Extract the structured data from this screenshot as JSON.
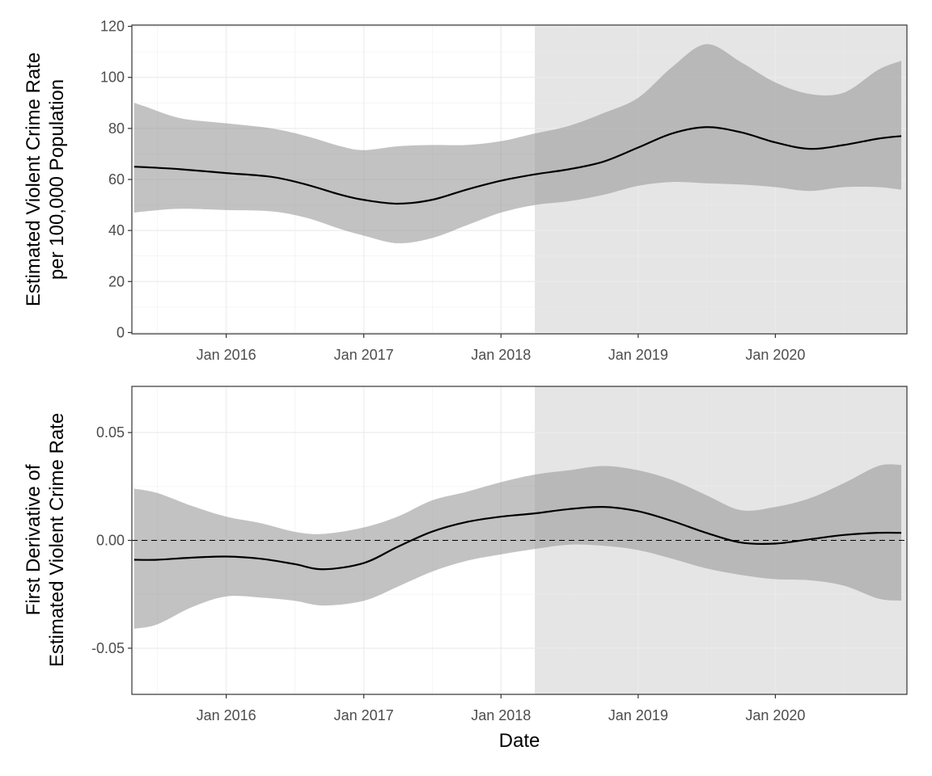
{
  "chart_data": [
    {
      "type": "line",
      "panel": "top",
      "ylabel_line1": "Estimated Violent Crime Rate",
      "ylabel_line2": "per 100,000 Population",
      "xlabel": "",
      "x_type": "date",
      "xlim": [
        "2015-04-25",
        "2020-12-16"
      ],
      "ylim": [
        -0.5,
        120.5
      ],
      "x_ticks": [
        {
          "date": "2016-01-01",
          "label": "Jan 2016"
        },
        {
          "date": "2017-01-01",
          "label": "Jan 2017"
        },
        {
          "date": "2018-01-01",
          "label": "Jan 2018"
        },
        {
          "date": "2019-01-01",
          "label": "Jan 2019"
        },
        {
          "date": "2020-01-01",
          "label": "Jan 2020"
        }
      ],
      "y_ticks": [
        0,
        20,
        40,
        60,
        80,
        100,
        120
      ],
      "grid": true,
      "shaded_region": {
        "start": "2018-04-01",
        "end": "2020-12-16",
        "color": "#e5e5e5"
      },
      "ribbon_color": "#999999",
      "line_color": "#000000",
      "series": [
        {
          "points": [
            {
              "x": "2015-05-01",
              "y": 65,
              "lo": 47,
              "hi": 90
            },
            {
              "x": "2015-06-01",
              "y": 64.8,
              "lo": 47.5,
              "hi": 88.5
            },
            {
              "x": "2015-09-01",
              "y": 64,
              "lo": 48.5,
              "hi": 84
            },
            {
              "x": "2016-01-01",
              "y": 62.5,
              "lo": 48,
              "hi": 82
            },
            {
              "x": "2016-05-01",
              "y": 61,
              "lo": 47.5,
              "hi": 80
            },
            {
              "x": "2016-08-01",
              "y": 58,
              "lo": 45,
              "hi": 77
            },
            {
              "x": "2016-11-01",
              "y": 54,
              "lo": 40.5,
              "hi": 73
            },
            {
              "x": "2017-01-01",
              "y": 52,
              "lo": 38,
              "hi": 71.5
            },
            {
              "x": "2017-04-01",
              "y": 50.5,
              "lo": 35,
              "hi": 73
            },
            {
              "x": "2017-07-01",
              "y": 52,
              "lo": 37,
              "hi": 73.5
            },
            {
              "x": "2017-10-01",
              "y": 56,
              "lo": 42,
              "hi": 73.5
            },
            {
              "x": "2018-01-01",
              "y": 59.5,
              "lo": 47,
              "hi": 75
            },
            {
              "x": "2018-04-01",
              "y": 62,
              "lo": 50,
              "hi": 78
            },
            {
              "x": "2018-07-01",
              "y": 64,
              "lo": 51.5,
              "hi": 81
            },
            {
              "x": "2018-10-01",
              "y": 67,
              "lo": 54,
              "hi": 86
            },
            {
              "x": "2019-01-01",
              "y": 72.5,
              "lo": 57.5,
              "hi": 92
            },
            {
              "x": "2019-04-01",
              "y": 78,
              "lo": 59,
              "hi": 104
            },
            {
              "x": "2019-07-01",
              "y": 80.5,
              "lo": 58.5,
              "hi": 113
            },
            {
              "x": "2019-10-01",
              "y": 78.5,
              "lo": 58,
              "hi": 106
            },
            {
              "x": "2020-01-01",
              "y": 74.5,
              "lo": 57,
              "hi": 98
            },
            {
              "x": "2020-04-01",
              "y": 72,
              "lo": 55.5,
              "hi": 93.5
            },
            {
              "x": "2020-07-01",
              "y": 73.5,
              "lo": 57,
              "hi": 94
            },
            {
              "x": "2020-10-01",
              "y": 76,
              "lo": 57,
              "hi": 103
            },
            {
              "x": "2020-12-01",
              "y": 77,
              "lo": 56,
              "hi": 106.5
            }
          ]
        }
      ]
    },
    {
      "type": "line",
      "panel": "bottom",
      "ylabel_line1": "First Derivative of",
      "ylabel_line2": "Estimated Violent Crime Rate",
      "xlabel": "Date",
      "x_type": "date",
      "xlim": [
        "2015-04-25",
        "2020-12-16"
      ],
      "ylim": [
        -0.0714,
        0.0714
      ],
      "x_ticks": [
        {
          "date": "2016-01-01",
          "label": "Jan 2016"
        },
        {
          "date": "2017-01-01",
          "label": "Jan 2017"
        },
        {
          "date": "2018-01-01",
          "label": "Jan 2018"
        },
        {
          "date": "2019-01-01",
          "label": "Jan 2019"
        },
        {
          "date": "2020-01-01",
          "label": "Jan 2020"
        }
      ],
      "y_ticks": [
        {
          "value": -0.05,
          "label": "-0.05"
        },
        {
          "value": 0.0,
          "label": "0.00"
        },
        {
          "value": 0.05,
          "label": "0.05"
        }
      ],
      "grid": true,
      "reference_line": {
        "y": 0,
        "style": "dashed"
      },
      "shaded_region": {
        "start": "2018-04-01",
        "end": "2020-12-16",
        "color": "#e5e5e5"
      },
      "ribbon_color": "#999999",
      "line_color": "#000000",
      "series": [
        {
          "points": [
            {
              "x": "2015-05-01",
              "y": -0.009,
              "lo": -0.041,
              "hi": 0.024
            },
            {
              "x": "2015-07-01",
              "y": -0.009,
              "lo": -0.039,
              "hi": 0.022
            },
            {
              "x": "2015-10-01",
              "y": -0.008,
              "lo": -0.031,
              "hi": 0.016
            },
            {
              "x": "2016-01-01",
              "y": -0.0075,
              "lo": -0.026,
              "hi": 0.011
            },
            {
              "x": "2016-04-01",
              "y": -0.0085,
              "lo": -0.0265,
              "hi": 0.008
            },
            {
              "x": "2016-07-01",
              "y": -0.011,
              "lo": -0.028,
              "hi": 0.004
            },
            {
              "x": "2016-09-15",
              "y": -0.0134,
              "lo": -0.0302,
              "hi": 0.003
            },
            {
              "x": "2017-01-01",
              "y": -0.0105,
              "lo": -0.028,
              "hi": 0.006
            },
            {
              "x": "2017-04-01",
              "y": -0.003,
              "lo": -0.0215,
              "hi": 0.011
            },
            {
              "x": "2017-07-01",
              "y": 0.004,
              "lo": -0.0145,
              "hi": 0.0185
            },
            {
              "x": "2017-10-01",
              "y": 0.0085,
              "lo": -0.0095,
              "hi": 0.0225
            },
            {
              "x": "2018-01-01",
              "y": 0.011,
              "lo": -0.0065,
              "hi": 0.027
            },
            {
              "x": "2018-04-01",
              "y": 0.0125,
              "lo": -0.004,
              "hi": 0.0305
            },
            {
              "x": "2018-07-01",
              "y": 0.0145,
              "lo": -0.002,
              "hi": 0.0325
            },
            {
              "x": "2018-10-01",
              "y": 0.0155,
              "lo": -0.0025,
              "hi": 0.0345
            },
            {
              "x": "2019-01-01",
              "y": 0.0135,
              "lo": -0.0045,
              "hi": 0.0325
            },
            {
              "x": "2019-04-01",
              "y": 0.009,
              "lo": -0.0085,
              "hi": 0.028
            },
            {
              "x": "2019-07-01",
              "y": 0.0035,
              "lo": -0.013,
              "hi": 0.021
            },
            {
              "x": "2019-10-01",
              "y": -0.001,
              "lo": -0.016,
              "hi": 0.014
            },
            {
              "x": "2020-01-01",
              "y": -0.0015,
              "lo": -0.018,
              "hi": 0.0155
            },
            {
              "x": "2020-04-01",
              "y": 0.0005,
              "lo": -0.0185,
              "hi": 0.0195
            },
            {
              "x": "2020-07-01",
              "y": 0.0025,
              "lo": -0.021,
              "hi": 0.0265
            },
            {
              "x": "2020-10-01",
              "y": 0.0035,
              "lo": -0.027,
              "hi": 0.0345
            },
            {
              "x": "2020-12-01",
              "y": 0.0035,
              "lo": -0.028,
              "hi": 0.035
            }
          ]
        }
      ]
    }
  ]
}
